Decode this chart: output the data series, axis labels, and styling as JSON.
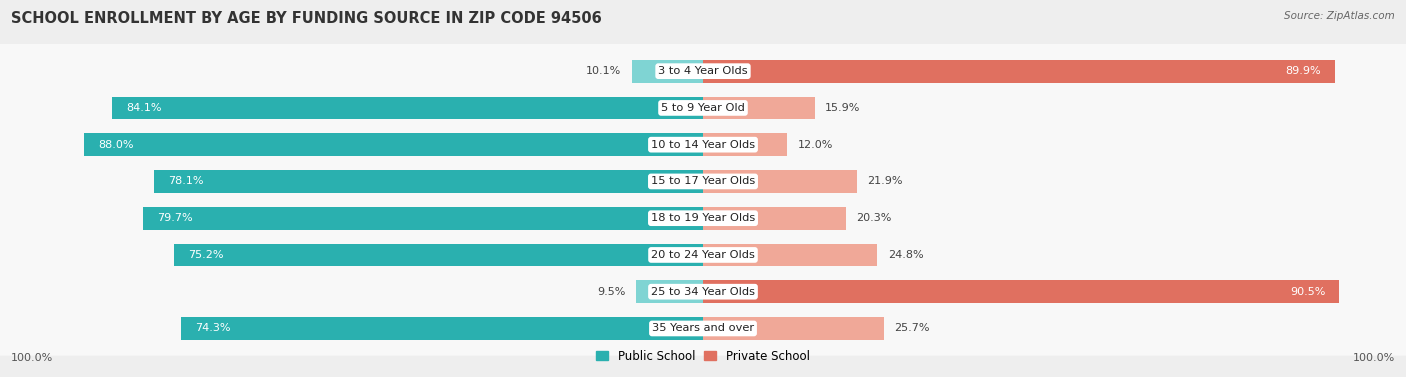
{
  "title": "SCHOOL ENROLLMENT BY AGE BY FUNDING SOURCE IN ZIP CODE 94506",
  "source": "Source: ZipAtlas.com",
  "categories": [
    "3 to 4 Year Olds",
    "5 to 9 Year Old",
    "10 to 14 Year Olds",
    "15 to 17 Year Olds",
    "18 to 19 Year Olds",
    "20 to 24 Year Olds",
    "25 to 34 Year Olds",
    "35 Years and over"
  ],
  "public_values": [
    10.1,
    84.1,
    88.0,
    78.1,
    79.7,
    75.2,
    9.5,
    74.3
  ],
  "private_values": [
    89.9,
    15.9,
    12.0,
    21.9,
    20.3,
    24.8,
    90.5,
    25.7
  ],
  "public_color_dark": "#2ab0af",
  "public_color_light": "#7fd4d3",
  "private_color_dark": "#e07060",
  "private_color_light": "#f0a898",
  "bg_color": "#eeeeee",
  "row_bg_light": "#f8f8f8",
  "row_bg_dark": "#e8e8e8",
  "title_fontsize": 10.5,
  "label_fontsize": 8.2,
  "value_fontsize": 8.0,
  "legend_fontsize": 8.5,
  "source_fontsize": 7.5
}
